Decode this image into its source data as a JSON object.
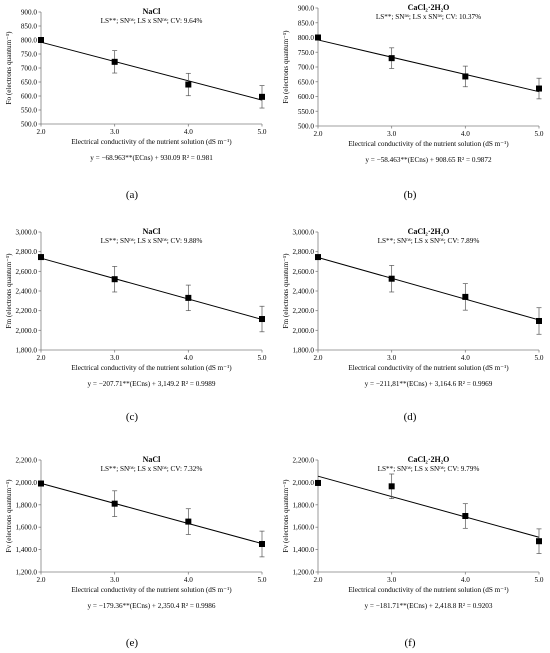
{
  "chart_data": [
    {
      "type": "scatter",
      "panel_label": "(a)",
      "title": "NaCl",
      "stats": "LS**; SN^ns; LS x SN^ns; CV: 9.64%",
      "xlabel": "Electrical conductivity of the nutrient solution (dS m⁻¹)",
      "ylabel": "Fo (electrons quantum⁻¹)",
      "x": [
        2.0,
        3.0,
        4.0,
        5.0
      ],
      "y": [
        800,
        722,
        641,
        597
      ],
      "error": [
        0,
        40,
        40,
        40
      ],
      "trendline": {
        "slope": -68.963,
        "intercept": 930.09
      },
      "equation": "y = −68.963**(ECns) + 930.09 R² = 0.981",
      "xlim": [
        2.0,
        5.0
      ],
      "ylim": [
        500.0,
        900.0
      ],
      "yticks": [
        500.0,
        550.0,
        600.0,
        650.0,
        700.0,
        750.0,
        800.0,
        850.0,
        900.0
      ],
      "ytick_labels": [
        "500.0",
        "550.0",
        "600.0",
        "650.0",
        "700.0",
        "750.0",
        "800.0",
        "850.0",
        "900.0"
      ],
      "xticks": [
        2.0,
        3.0,
        4.0,
        5.0
      ],
      "xtick_labels": [
        "2.0",
        "3.0",
        "4.0",
        "5.0"
      ]
    },
    {
      "type": "scatter",
      "panel_label": "(b)",
      "title": "CaCl₂·2H₂O",
      "stats": "LS**; SN^ns; LS x SN^ns; CV: 10.37%",
      "xlabel": "Electrical conductivity of the nutrient solution (dS m⁻¹)",
      "ylabel": "Fo (electrons quantum⁻¹)",
      "x": [
        2.0,
        3.0,
        4.0,
        5.0
      ],
      "y": [
        800,
        730,
        668,
        627
      ],
      "error": [
        0,
        35,
        35,
        35
      ],
      "trendline": {
        "slope": -58.463,
        "intercept": 908.65
      },
      "equation": "y = −58.463**(ECns) + 908.65 R² = 0.9872",
      "xlim": [
        2.0,
        5.0
      ],
      "ylim": [
        500.0,
        900.0
      ],
      "yticks": [
        500.0,
        550.0,
        600.0,
        650.0,
        700.0,
        750.0,
        800.0,
        850.0,
        900.0
      ],
      "ytick_labels": [
        "500.0",
        "550.0",
        "600.0",
        "650.0",
        "700.0",
        "750.0",
        "800.0",
        "850.0",
        "900.0"
      ],
      "xticks": [
        2.0,
        3.0,
        4.0,
        5.0
      ],
      "xtick_labels": [
        "2.0",
        "3.0",
        "4.0",
        "5.0"
      ]
    },
    {
      "type": "scatter",
      "panel_label": "(c)",
      "title": "NaCl",
      "stats": "LS**; SN^ns; LS x SN^ns; CV: 9.88%",
      "xlabel": "Electrical conductivity of the nutrient solution (dS m⁻¹)",
      "ylabel": "Fm (electrons quantum⁻¹)",
      "x": [
        2.0,
        3.0,
        4.0,
        5.0
      ],
      "y": [
        2745,
        2520,
        2330,
        2115
      ],
      "error": [
        0,
        130,
        130,
        130
      ],
      "trendline": {
        "slope": -207.71,
        "intercept": 3149.2
      },
      "equation": "y = −207.71**(ECns) + 3,149.2 R² = 0.9989",
      "xlim": [
        2.0,
        5.0
      ],
      "ylim": [
        1800.0,
        3000.0
      ],
      "yticks": [
        1800.0,
        2000.0,
        2200.0,
        2400.0,
        2600.0,
        2800.0,
        3000.0
      ],
      "ytick_labels": [
        "1,800.0",
        "2,000.0",
        "2,200.0",
        "2,400.0",
        "2,600.0",
        "2,800.0",
        "3,000.0"
      ],
      "xticks": [
        2.0,
        3.0,
        4.0,
        5.0
      ],
      "xtick_labels": [
        "2.0",
        "3.0",
        "4.0",
        "5.0"
      ]
    },
    {
      "type": "scatter",
      "panel_label": "(d)",
      "title": "CaCl₂·2H₂O",
      "stats": "LS**; SN^ns; LS x SN^ns; CV: 7.89%",
      "xlabel": "Electrical conductivity of the nutrient solution (dS m⁻¹)",
      "ylabel": "Fm (electrons quantum⁻¹)",
      "x": [
        2.0,
        3.0,
        4.0,
        5.0
      ],
      "y": [
        2745,
        2525,
        2340,
        2095
      ],
      "error": [
        0,
        135,
        135,
        135
      ],
      "trendline": {
        "slope": -211.81,
        "intercept": 3164.6
      },
      "equation": "y = −211,81**(ECns) + 3,164.6 R² = 0.9969",
      "xlim": [
        2.0,
        5.0
      ],
      "ylim": [
        1800.0,
        3000.0
      ],
      "yticks": [
        1800.0,
        2000.0,
        2200.0,
        2400.0,
        2600.0,
        2800.0,
        3000.0
      ],
      "ytick_labels": [
        "1,800.0",
        "2,000.0",
        "2,200.0",
        "2,400.0",
        "2,600.0",
        "2,800.0",
        "3,000.0"
      ],
      "xticks": [
        2.0,
        3.0,
        4.0,
        5.0
      ],
      "xtick_labels": [
        "2.0",
        "3.0",
        "4.0",
        "5.0"
      ]
    },
    {
      "type": "scatter",
      "panel_label": "(e)",
      "title": "NaCl",
      "stats": "LS**; SN^ns; LS x SN^ns; CV: 7.32%",
      "xlabel": "Electrical conductivity of the nutrient solution (dS m⁻¹)",
      "ylabel": "Fv (electrons quantum⁻¹)",
      "x": [
        2.0,
        3.0,
        4.0,
        5.0
      ],
      "y": [
        1990,
        1810,
        1650,
        1450
      ],
      "error": [
        0,
        115,
        115,
        115
      ],
      "trendline": {
        "slope": -179.36,
        "intercept": 2350.4
      },
      "equation": "y = −179.36**(ECns) + 2,350.4 R² = 0.9986",
      "xlim": [
        2.0,
        5.0
      ],
      "ylim": [
        1200.0,
        2200.0
      ],
      "yticks": [
        1200.0,
        1400.0,
        1600.0,
        1800.0,
        2000.0,
        2200.0
      ],
      "ytick_labels": [
        "1,200.0",
        "1,400.0",
        "1,600.0",
        "1,800.0",
        "2,000.0",
        "2,200.0"
      ],
      "xticks": [
        2.0,
        3.0,
        4.0,
        5.0
      ],
      "xtick_labels": [
        "2.0",
        "3.0",
        "4.0",
        "5.0"
      ]
    },
    {
      "type": "scatter",
      "panel_label": "(f)",
      "title": "CaCl₂·2H₂O",
      "stats": "LS**; SN^ns; LS x SN^ns; CV: 9.79%",
      "xlabel": "Electrical conductivity of the nutrient solution (dS m⁻¹)",
      "ylabel": "Fv (electrons quantum⁻¹)",
      "x": [
        2.0,
        3.0,
        4.0,
        5.0
      ],
      "y": [
        1995,
        1965,
        1700,
        1475
      ],
      "error": [
        0,
        110,
        110,
        110
      ],
      "trendline": {
        "slope": -181.71,
        "intercept": 2418.8
      },
      "equation": "y = −181.71**(ECns) + 2,418.8 R² = 0.9203",
      "xlim": [
        2.0,
        5.0
      ],
      "ylim": [
        1200.0,
        2200.0
      ],
      "yticks": [
        1200.0,
        1400.0,
        1600.0,
        1800.0,
        2000.0,
        2200.0
      ],
      "ytick_labels": [
        "1,200.0",
        "1,400.0",
        "1,600.0",
        "1,800.0",
        "2,000.0",
        "2,200.0"
      ],
      "xticks": [
        2.0,
        3.0,
        4.0,
        5.0
      ],
      "xtick_labels": [
        "2.0",
        "3.0",
        "4.0",
        "5.0"
      ]
    }
  ]
}
